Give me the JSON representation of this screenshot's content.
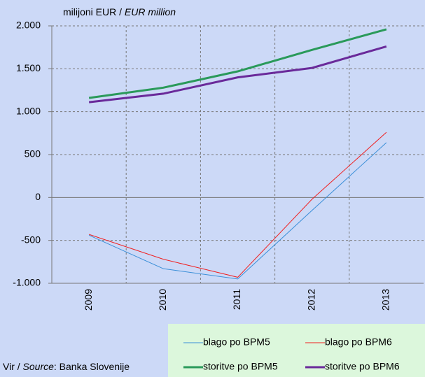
{
  "chart_data": {
    "type": "line",
    "y_label": [
      "milijoni EUR / ",
      "EUR million"
    ],
    "source": [
      "Vir / ",
      "Source",
      ": Banka Slovenije"
    ],
    "categories": [
      "2009",
      "2010",
      "2011",
      "2012",
      "2013"
    ],
    "series": [
      {
        "name": "blago po BPM5",
        "color": "#3a8fd8",
        "width": 1,
        "values": [
          -440,
          -830,
          -950,
          -150,
          640
        ]
      },
      {
        "name": "blago po BPM6",
        "color": "#f02020",
        "width": 1,
        "values": [
          -430,
          -720,
          -930,
          -20,
          760
        ]
      },
      {
        "name": "storitve po BPM5",
        "color": "#2a9a5a",
        "width": 3,
        "values": [
          1160,
          1280,
          1470,
          1720,
          1960
        ]
      },
      {
        "name": "storitve po BPM6",
        "color": "#6a2a9a",
        "width": 3,
        "values": [
          1110,
          1210,
          1400,
          1510,
          1760
        ]
      }
    ],
    "ylim": [
      -1000,
      2000
    ],
    "yticks": [
      {
        "value": -1000,
        "label": "-1.000"
      },
      -500,
      0,
      500,
      {
        "value": 1000,
        "label": "1.000"
      },
      {
        "value": 1500,
        "label": "1.500"
      },
      {
        "value": 2000,
        "label": "2.000"
      }
    ],
    "grid": true
  }
}
